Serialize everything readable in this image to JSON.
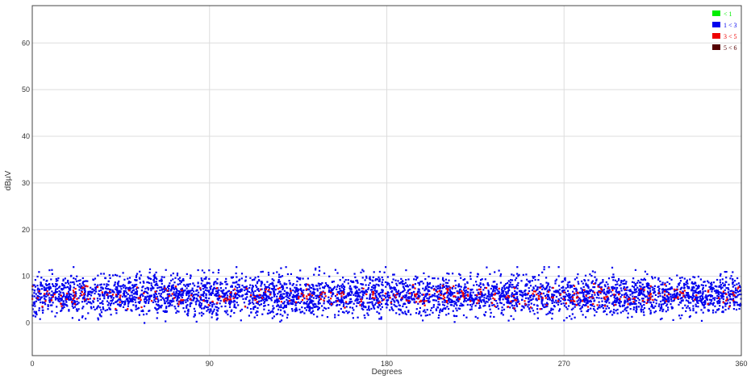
{
  "chart_data": {
    "type": "scatter",
    "title": "",
    "xlabel": "Degrees",
    "ylabel": "dBµV",
    "xlim": [
      0,
      360
    ],
    "ylim": [
      -7,
      68
    ],
    "x_ticks": [
      0,
      90,
      180,
      270,
      360
    ],
    "y_ticks": [
      0,
      10,
      20,
      30,
      40,
      50,
      60
    ],
    "grid": true,
    "legend_position": "top-right",
    "legend": [
      {
        "label": "< 1",
        "color": "#00ee00"
      },
      {
        "label": "1 < 3",
        "color": "#0000ee"
      },
      {
        "label": "3 < 5",
        "color": "#ee0000"
      },
      {
        "label": "5 < 6",
        "color": "#550000"
      }
    ],
    "series": [
      {
        "name": "1 < 3",
        "color": "#0000ee",
        "points_per_degree": 12,
        "y_center": 6,
        "y_spread": 2.2,
        "y_min": -1.5,
        "y_max": 12
      },
      {
        "name": "3 < 5",
        "color": "#ee0000",
        "points_per_degree": 1,
        "y_center": 5.8,
        "y_spread": 1.2,
        "y_min": 3,
        "y_max": 9
      }
    ]
  }
}
